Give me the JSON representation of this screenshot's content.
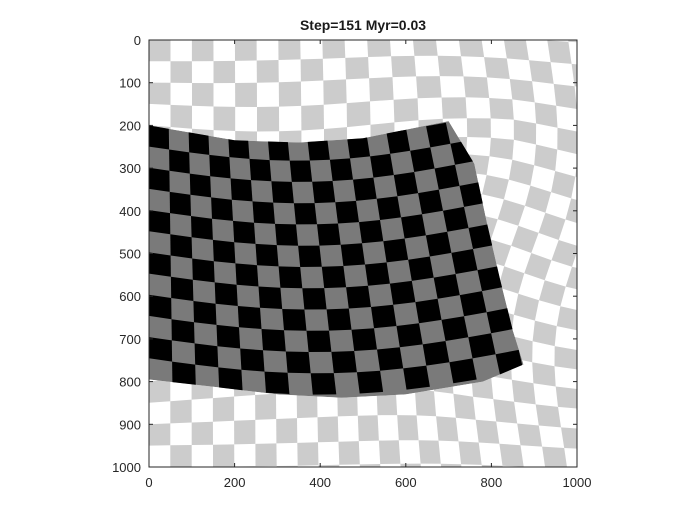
{
  "chart_data": {
    "type": "image",
    "title": "Step=151 Myr=0.03",
    "xlim": [
      0,
      1000
    ],
    "ylim": [
      0,
      1000
    ],
    "y_axis_direction": "reversed",
    "x_ticks": [
      0,
      200,
      400,
      600,
      800,
      1000
    ],
    "y_ticks": [
      0,
      100,
      200,
      300,
      400,
      500,
      600,
      700,
      800,
      900,
      1000
    ],
    "x_tick_labels": [
      "0",
      "200",
      "400",
      "600",
      "800",
      "1000"
    ],
    "y_tick_labels": [
      "0",
      "100",
      "200",
      "300",
      "400",
      "500",
      "600",
      "700",
      "800",
      "900",
      "1000"
    ],
    "checker_cell_size": 50,
    "colors": {
      "background": "#ffffff",
      "outer_checker": "#cccccc",
      "inner_dark": "#000000",
      "inner_light": "#7a7a7a",
      "axis": "#262626"
    },
    "deformed_block_outline": [
      [
        0,
        200
      ],
      [
        200,
        235
      ],
      [
        350,
        240
      ],
      [
        500,
        230
      ],
      [
        700,
        190
      ],
      [
        760,
        290
      ],
      [
        790,
        430
      ],
      [
        820,
        560
      ],
      [
        850,
        680
      ],
      [
        875,
        760
      ],
      [
        780,
        800
      ],
      [
        600,
        830
      ],
      [
        450,
        838
      ],
      [
        300,
        830
      ],
      [
        150,
        812
      ],
      [
        0,
        795
      ]
    ]
  }
}
